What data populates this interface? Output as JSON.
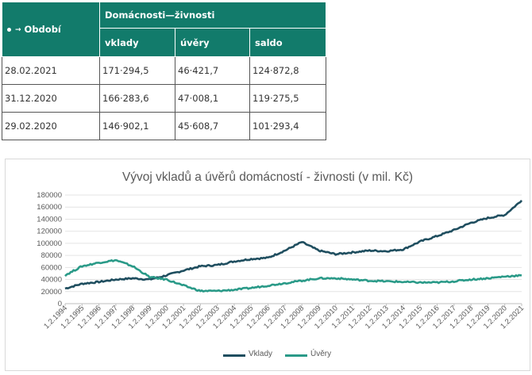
{
  "table": {
    "period_header": "Období",
    "group_header": "Domácnosti—živnosti",
    "columns": [
      "vklady",
      "úvěry",
      "saldo"
    ],
    "rows": [
      {
        "date": "28.02.2021",
        "vklady": "171·294,5",
        "uvery": "46·421,7",
        "saldo": "124·872,8"
      },
      {
        "date": "31.12.2020",
        "vklady": "166·283,6",
        "uvery": "47·008,1",
        "saldo": "119·275,5"
      },
      {
        "date": "29.02.2020",
        "vklady": "146·902,1",
        "uvery": "45·608,7",
        "saldo": "101·293,4"
      }
    ]
  },
  "chart_data": {
    "type": "line",
    "title": "Vývoj vkladů a úvěrů domácností - živnosti (v mil. Kč)",
    "xlabel": "",
    "ylabel": "",
    "x": [
      "1.2.1994",
      "1.2.1995",
      "1.2.1996",
      "1.2.1997",
      "1.2.1998",
      "1.2.1999",
      "1.2.2000",
      "1.2.2001",
      "1.2.2002",
      "1.2.2003",
      "1.2.2004",
      "1.2.2005",
      "1.2.2006",
      "1.2.2007",
      "1.2.2008",
      "1.2.2009",
      "1.2.2010",
      "1.2.2011",
      "1.2.2012",
      "1.2.2013",
      "1.2.2014",
      "1.2.2015",
      "1.2.2016",
      "1.2.2017",
      "1.2.2018",
      "1.2.2019",
      "1.2.2020",
      "1.2.2021"
    ],
    "ylim": [
      0,
      180000
    ],
    "yticks": [
      "0",
      "20000",
      "40000",
      "60000",
      "80000",
      "100000",
      "120000",
      "140000",
      "160000",
      "180000"
    ],
    "legend_position": "bottom",
    "series": [
      {
        "name": "Vklady",
        "color": "#1f4e5f",
        "values": [
          25000,
          33000,
          36000,
          40000,
          42000,
          40000,
          47000,
          55000,
          62000,
          64000,
          70000,
          74000,
          76000,
          88000,
          102000,
          88000,
          82000,
          85000,
          88000,
          87000,
          90000,
          103000,
          112000,
          122000,
          134000,
          142000,
          147000,
          171000
        ]
      },
      {
        "name": "Úvěry",
        "color": "#2a9a88",
        "values": [
          47000,
          62000,
          68000,
          72000,
          62000,
          44000,
          40000,
          30000,
          21000,
          21000,
          23000,
          26000,
          30000,
          34000,
          38000,
          42000,
          42000,
          40000,
          38000,
          37000,
          36000,
          35000,
          35000,
          37000,
          40000,
          42000,
          45000,
          47000
        ]
      }
    ]
  }
}
